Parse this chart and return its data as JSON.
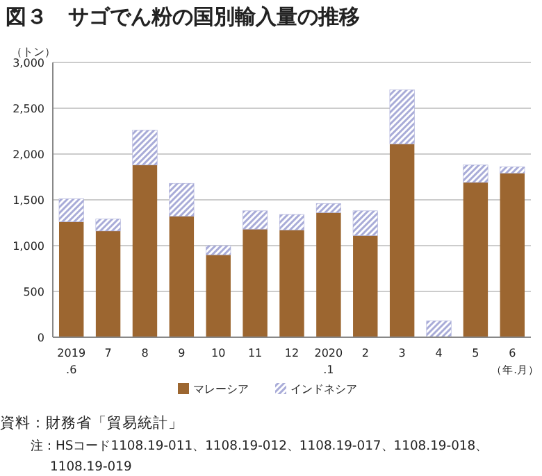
{
  "chart_data": {
    "type": "bar",
    "title": "図３　サゴでん粉の国別輸入量の推移",
    "ylabel": "（トン）",
    "xlabel": "（年.月）",
    "categories": [
      "2019\n.6",
      "7",
      "8",
      "9",
      "10",
      "11",
      "12",
      "2020\n.1",
      "2",
      "3",
      "4",
      "5",
      "6"
    ],
    "series": [
      {
        "name": "マレーシア",
        "color": "#9c6630",
        "values": [
          1260,
          1160,
          1880,
          1320,
          900,
          1180,
          1170,
          1360,
          1110,
          2110,
          0,
          1690,
          1790
        ]
      },
      {
        "name": "インドネシア",
        "color": "#a9acd8",
        "values": [
          250,
          130,
          380,
          360,
          100,
          200,
          170,
          100,
          270,
          590,
          180,
          190,
          70
        ]
      }
    ],
    "stacked": true,
    "ylim": [
      0,
      3000
    ],
    "yticks": [
      {
        "value": 0,
        "label": "0"
      },
      {
        "value": 500,
        "label": "500"
      },
      {
        "value": 1000,
        "label": "1,000"
      },
      {
        "value": 1500,
        "label": "1,500"
      },
      {
        "value": 2000,
        "label": "2,000"
      },
      {
        "value": 2500,
        "label": "2,500"
      },
      {
        "value": 3000,
        "label": "3,000"
      }
    ],
    "grid": "y",
    "legend": "bottom",
    "annotations": [
      "資料：財務省「貿易統計」",
      "注：HSコード1108.19-011、1108.19-012、1108.19-017、1108.19-018、\n1108.19-019"
    ]
  }
}
